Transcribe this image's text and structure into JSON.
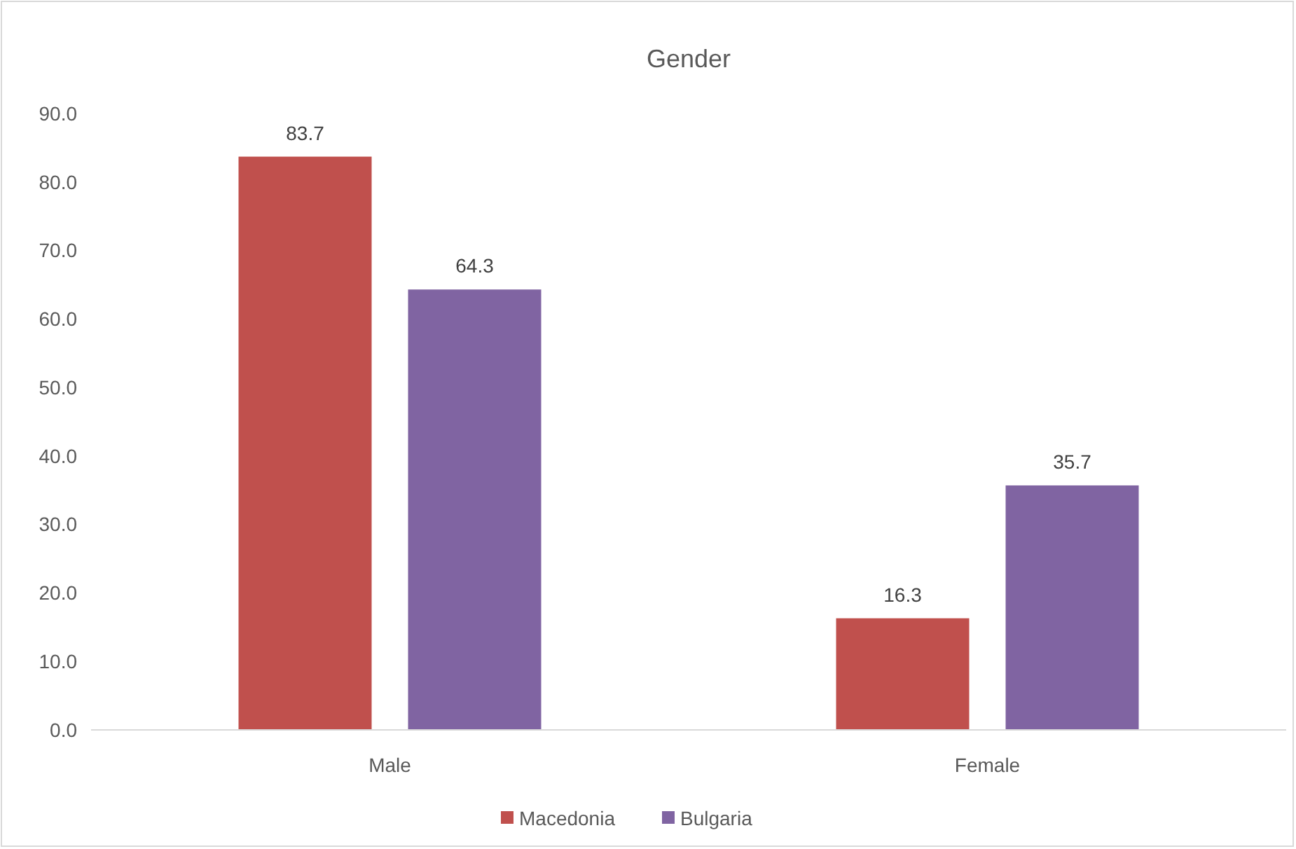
{
  "chart_data": {
    "type": "bar",
    "title": "Gender",
    "categories": [
      "Male",
      "Female"
    ],
    "series": [
      {
        "name": "Macedonia",
        "color": "#c0504d",
        "values": [
          83.7,
          16.3
        ]
      },
      {
        "name": "Bulgaria",
        "color": "#8064a2",
        "values": [
          64.3,
          35.7
        ]
      }
    ],
    "ylim": [
      0,
      90
    ],
    "yticks": [
      {
        "value": 0,
        "label": "0.0"
      },
      {
        "value": 10,
        "label": "10.0"
      },
      {
        "value": 20,
        "label": "20.0"
      },
      {
        "value": 30,
        "label": "30.0"
      },
      {
        "value": 40,
        "label": "40.0"
      },
      {
        "value": 50,
        "label": "50.0"
      },
      {
        "value": 60,
        "label": "60.0"
      },
      {
        "value": 70,
        "label": "70.0"
      },
      {
        "value": 80,
        "label": "80.0"
      },
      {
        "value": 90,
        "label": "90.0"
      }
    ],
    "data_labels": true,
    "legend": "bottom",
    "grid": false
  }
}
